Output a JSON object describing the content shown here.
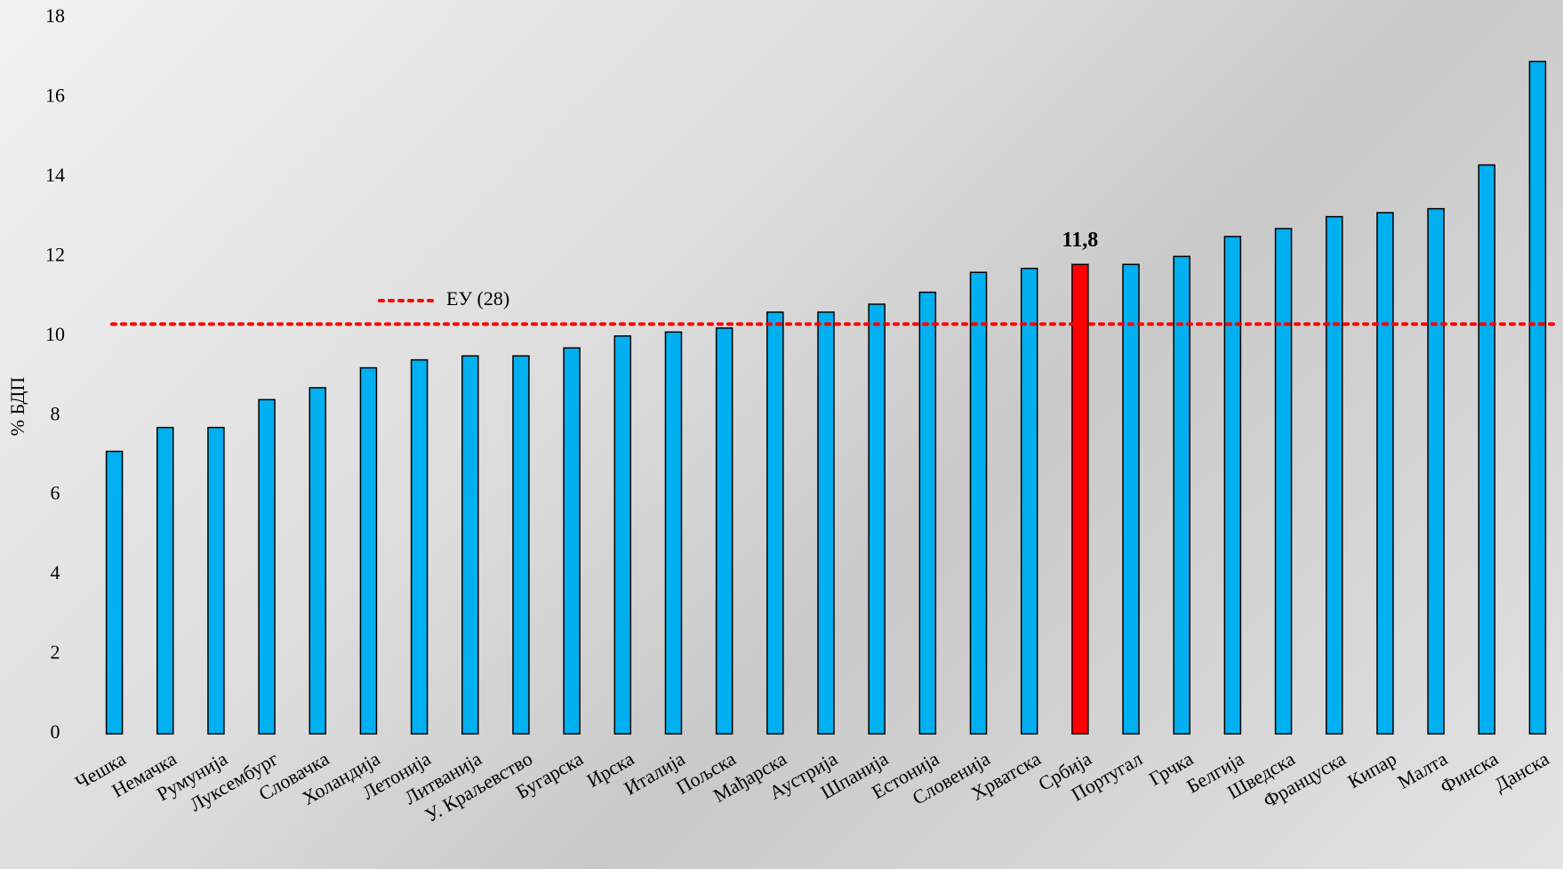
{
  "chart_data": {
    "type": "bar",
    "y_label": "% БДП",
    "categories": [
      "Чешка",
      "Немачка",
      "Румунија",
      "Луксембург",
      "Словачка",
      "Холандија",
      "Летонија",
      "Литванија",
      "У. Краљевство",
      "Бугарска",
      "Ирска",
      "Италија",
      "Пољска",
      "Мађарска",
      "Аустрија",
      "Шпанија",
      "Естонија",
      "Словенија",
      "Хрватска",
      "Србија",
      "Португал",
      "Грчка",
      "Белгија",
      "Шведска",
      "Француска",
      "Кипар",
      "Малта",
      "Финска",
      "Данска"
    ],
    "values": [
      7.1,
      7.7,
      7.7,
      8.4,
      8.7,
      9.2,
      9.4,
      9.5,
      9.5,
      9.7,
      10.0,
      10.1,
      10.2,
      10.6,
      10.6,
      10.8,
      11.1,
      11.6,
      11.7,
      11.8,
      11.8,
      12.0,
      12.5,
      12.7,
      13.0,
      13.1,
      13.2,
      14.3,
      16.9
    ],
    "value_labels": [
      null,
      null,
      null,
      null,
      null,
      null,
      null,
      null,
      null,
      null,
      null,
      null,
      null,
      null,
      null,
      null,
      null,
      null,
      null,
      "11,8",
      null,
      null,
      null,
      null,
      null,
      null,
      null,
      null,
      null
    ],
    "colors": [
      "#00b0f0",
      "#00b0f0",
      "#00b0f0",
      "#00b0f0",
      "#00b0f0",
      "#00b0f0",
      "#00b0f0",
      "#00b0f0",
      "#00b0f0",
      "#00b0f0",
      "#00b0f0",
      "#00b0f0",
      "#00b0f0",
      "#00b0f0",
      "#00b0f0",
      "#00b0f0",
      "#00b0f0",
      "#00b0f0",
      "#00b0f0",
      "#ff0000",
      "#00b0f0",
      "#00b0f0",
      "#00b0f0",
      "#00b0f0",
      "#00b0f0",
      "#00b0f0",
      "#00b0f0",
      "#00b0f0",
      "#00b0f0"
    ],
    "reference_line": {
      "value": 10.3,
      "label": "ЕУ (28)",
      "color": "#ff0000"
    },
    "ylim": [
      0,
      18
    ],
    "yticks": [
      0,
      2,
      4,
      6,
      8,
      10,
      12,
      14,
      16,
      18
    ],
    "grid": false
  }
}
